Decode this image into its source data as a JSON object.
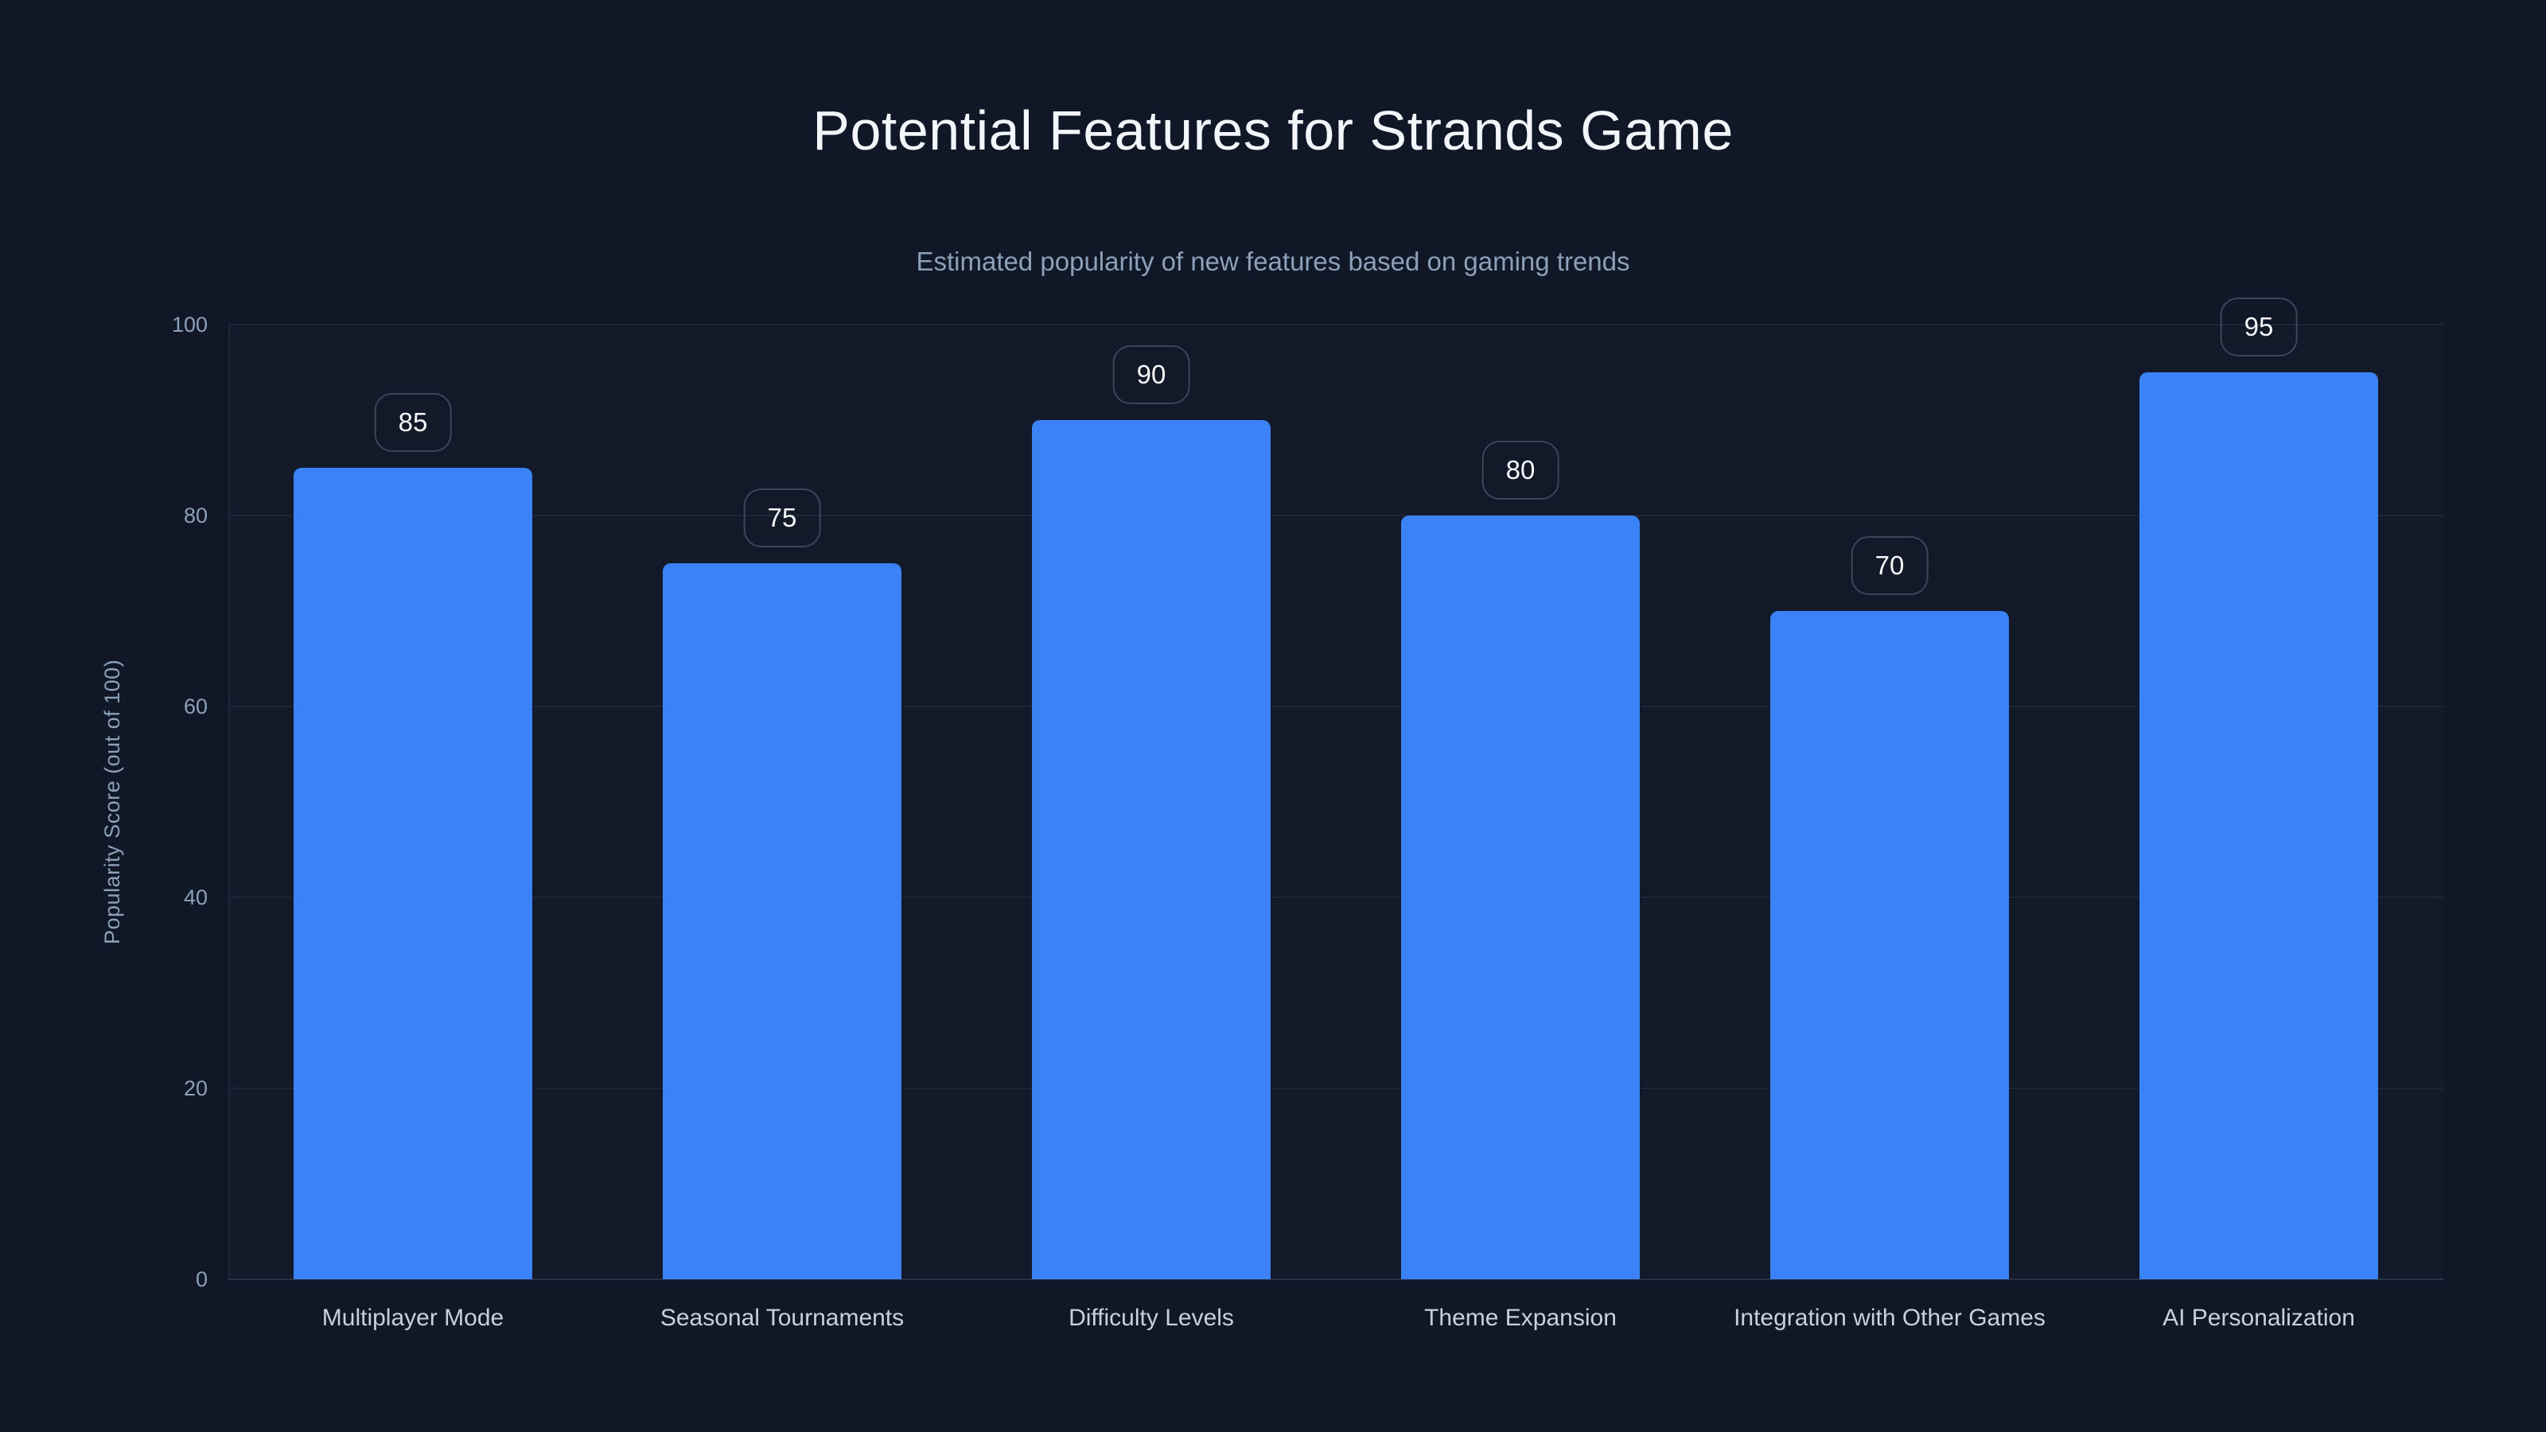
{
  "header": {
    "title": "Potential Features for Strands Game",
    "subtitle": "Estimated popularity of new features based on gaming trends"
  },
  "colors": {
    "background": "#101726",
    "bar": "#3b82f6",
    "gridline": "#1d2637",
    "axis_line": "#2a3346",
    "title_text": "#f2f5f9",
    "muted_text": "#8da0b9",
    "category_text": "#c7d0dd",
    "badge_border": "#3c4656",
    "badge_text": "#f5f7fa"
  },
  "chart_data": {
    "type": "bar",
    "title": "Potential Features for Strands Game",
    "subtitle": "Estimated popularity of new features based on gaming trends",
    "categories": [
      "Multiplayer Mode",
      "Seasonal Tournaments",
      "Difficulty Levels",
      "Theme Expansion",
      "Integration with Other Games",
      "AI Personalization"
    ],
    "values": [
      85,
      75,
      90,
      80,
      70,
      95
    ],
    "value_labels": [
      "85",
      "75",
      "90",
      "80",
      "70",
      "95"
    ],
    "xlabel": "",
    "ylabel": "Popularity Score (out of 100)",
    "ylim": [
      0,
      100
    ],
    "yticks": [
      0,
      20,
      40,
      60,
      80,
      100
    ],
    "grid": true,
    "legend": false,
    "bar_color": "#3b82f6"
  }
}
